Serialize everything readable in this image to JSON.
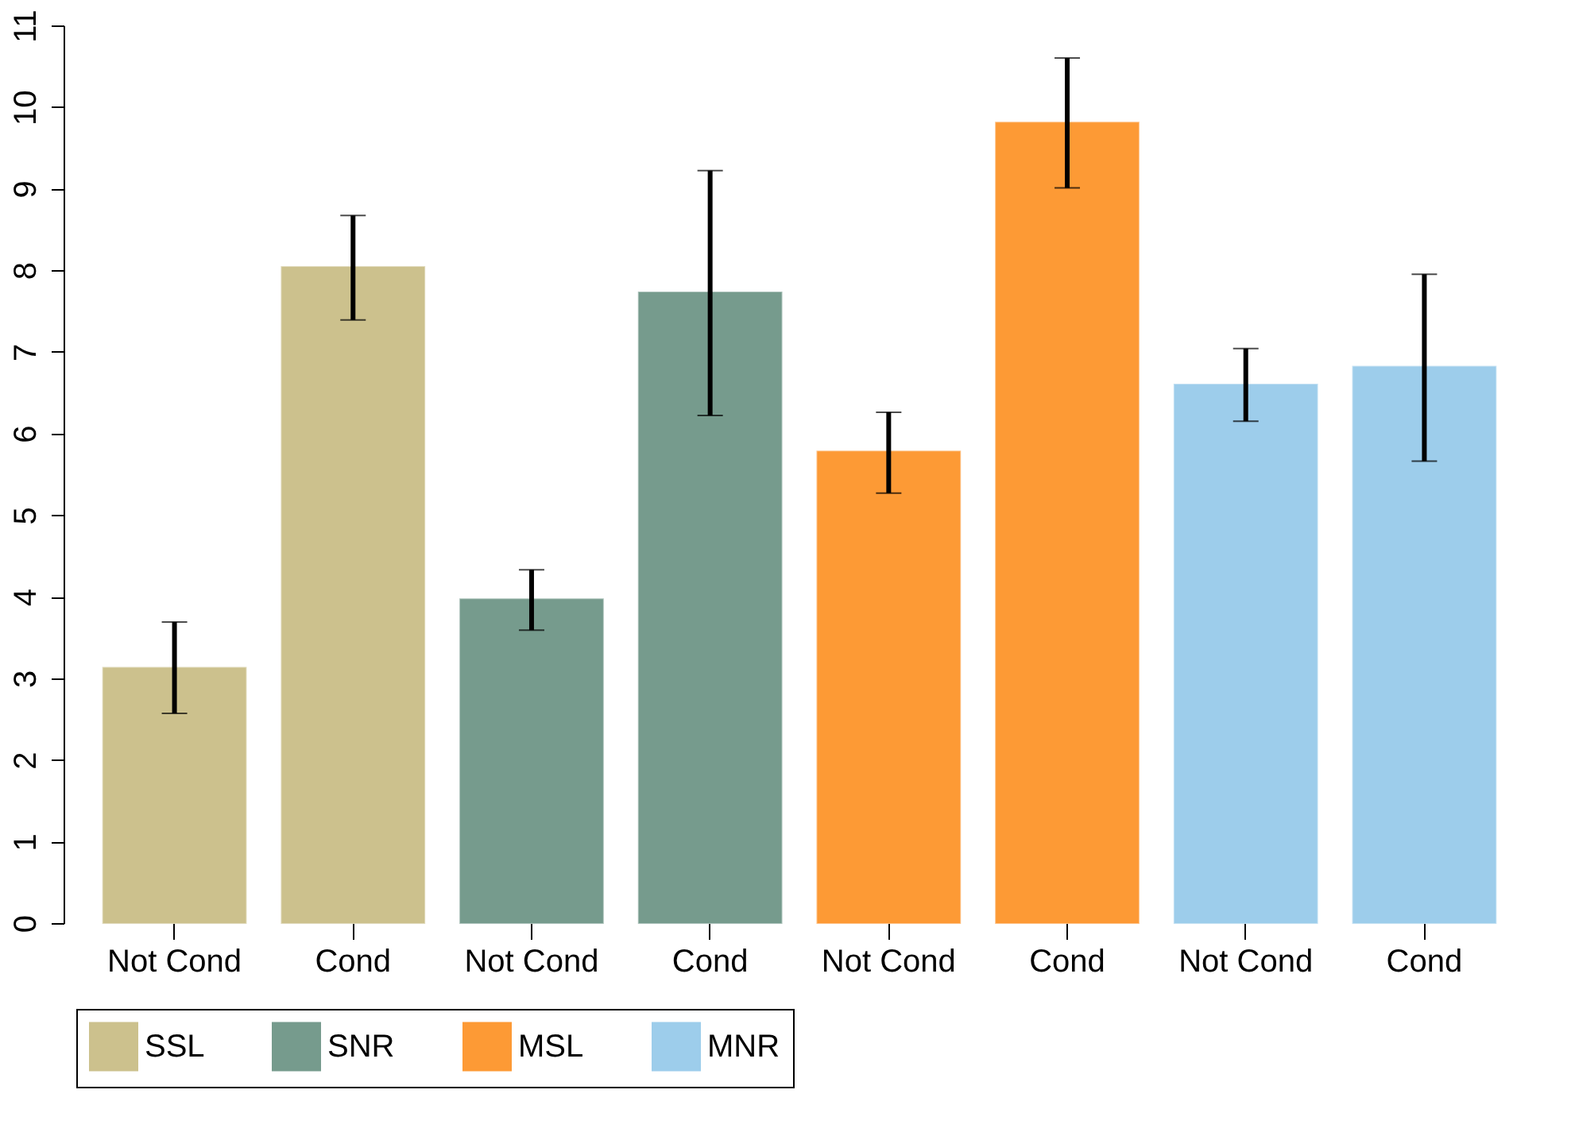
{
  "chart_data": {
    "type": "bar",
    "categories": [
      "Not Cond",
      "Cond",
      "Not Cond",
      "Cond",
      "Not Cond",
      "Cond",
      "Not Cond",
      "Cond"
    ],
    "series": [
      {
        "name": "SSL",
        "color": "#ccc18d",
        "values": [
          3.13,
          8.04,
          null,
          null,
          null,
          null,
          null,
          null
        ],
        "errors": [
          [
            2.57,
            3.69
          ],
          [
            7.39,
            8.67
          ],
          null,
          null,
          null,
          null,
          null,
          null
        ]
      },
      {
        "name": "SNR",
        "color": "#769b8d",
        "values": [
          null,
          null,
          3.97,
          7.73,
          null,
          null,
          null,
          null
        ],
        "errors": [
          null,
          null,
          [
            3.59,
            4.33
          ],
          [
            6.22,
            9.22
          ],
          null,
          null,
          null,
          null
        ]
      },
      {
        "name": "MSL",
        "color": "#fd9a35",
        "values": [
          null,
          null,
          null,
          null,
          5.78,
          9.81,
          null,
          null
        ],
        "errors": [
          null,
          null,
          null,
          null,
          [
            5.27,
            6.26
          ],
          [
            9.01,
            10.6
          ],
          null,
          null
        ]
      },
      {
        "name": "MNR",
        "color": "#9dcdeb",
        "values": [
          null,
          null,
          null,
          null,
          null,
          null,
          6.6,
          6.82
        ],
        "errors": [
          null,
          null,
          null,
          null,
          null,
          null,
          [
            6.15,
            7.04
          ],
          [
            5.66,
            7.95
          ]
        ]
      }
    ],
    "ylim": [
      0,
      11
    ],
    "yticks": [
      0,
      1,
      2,
      3,
      4,
      5,
      6,
      7,
      8,
      9,
      10,
      11
    ],
    "grid": false,
    "legend": "bottom"
  }
}
